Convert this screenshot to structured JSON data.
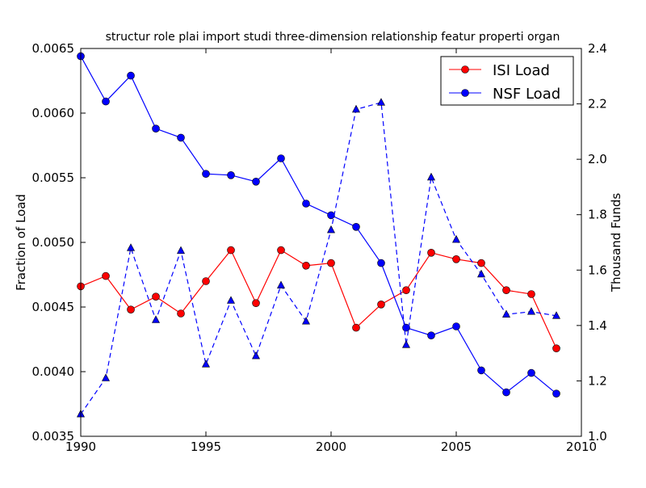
{
  "chart_data": {
    "type": "line",
    "title": "structur role plai import studi three-dimension relationship featur properti organ",
    "xlabel": "",
    "ylabel": "Fraction of Load",
    "ylabel_right": "Thousand Funds",
    "xlim": [
      1990,
      2010
    ],
    "ylim": [
      0.0035,
      0.0065
    ],
    "ylim_right": [
      1.0,
      2.4
    ],
    "x_ticks": [
      "1990",
      "1995",
      "2000",
      "2005",
      "2010"
    ],
    "y_ticks": [
      "0.0035",
      "0.0040",
      "0.0045",
      "0.0050",
      "0.0055",
      "0.0060",
      "0.0065"
    ],
    "y_ticks_right": [
      "1.0",
      "1.2",
      "1.4",
      "1.6",
      "1.8",
      "2.0",
      "2.2",
      "2.4"
    ],
    "legend_position": "top-right",
    "x": [
      1990,
      1991,
      1992,
      1993,
      1994,
      1995,
      1996,
      1997,
      1998,
      1999,
      2000,
      2001,
      2002,
      2003,
      2004,
      2005,
      2006,
      2007,
      2008,
      2009
    ],
    "series": [
      {
        "name": "ISI Load",
        "axis": "left",
        "color": "#ff0000",
        "marker": "circle",
        "style": "solid",
        "values": [
          0.00466,
          0.00474,
          0.00448,
          0.00458,
          0.00445,
          0.0047,
          0.00494,
          0.00453,
          0.00494,
          0.00482,
          0.00484,
          0.00434,
          0.00452,
          0.00463,
          0.00492,
          0.00487,
          0.00484,
          0.00463,
          0.0046,
          0.00418
        ]
      },
      {
        "name": "NSF Load",
        "axis": "left",
        "color": "#0000ff",
        "marker": "circle",
        "style": "solid",
        "values": [
          0.00644,
          0.00609,
          0.00629,
          0.00588,
          0.00581,
          0.00553,
          0.00552,
          0.00547,
          0.00565,
          0.0053,
          0.00521,
          0.00512,
          0.00484,
          0.00434,
          0.00428,
          0.00435,
          0.00401,
          0.00384,
          0.00399,
          0.00383
        ]
      },
      {
        "name": "Thousand Funds",
        "axis": "right",
        "color": "#0000ff",
        "marker": "triangle",
        "style": "dashed",
        "in_legend": false,
        "values": [
          1.08,
          1.21,
          1.68,
          1.42,
          1.67,
          1.26,
          1.49,
          1.29,
          1.545,
          1.415,
          1.745,
          2.18,
          2.205,
          1.33,
          1.935,
          1.71,
          1.585,
          1.44,
          1.45,
          1.435
        ]
      }
    ]
  }
}
